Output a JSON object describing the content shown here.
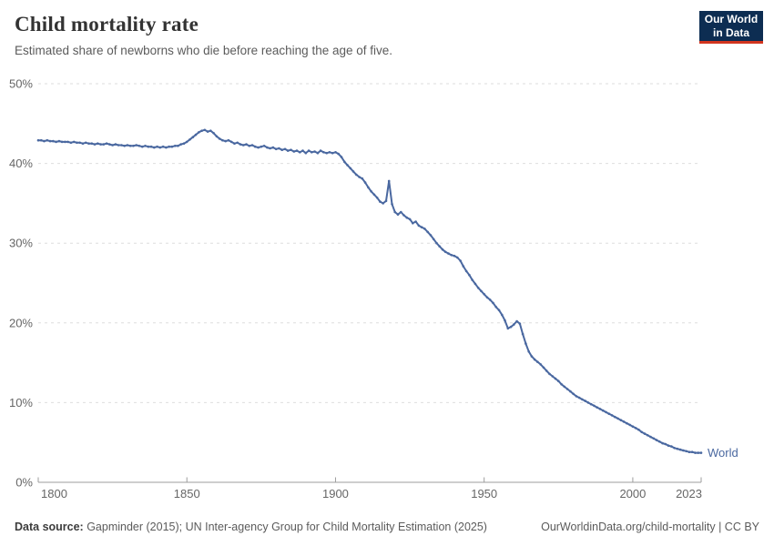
{
  "header": {
    "title": "Child mortality rate",
    "subtitle": "Estimated share of newborns who die before reaching the age of five."
  },
  "logo": {
    "line1": "Our World",
    "line2": "in Data"
  },
  "colors": {
    "line": "#4a68a0",
    "grid": "#dedede",
    "axis": "#9d9d9d",
    "tick_text": "#666666",
    "logo_bg": "#0d2d52",
    "logo_accent": "#d2351f"
  },
  "chart_data": {
    "type": "line",
    "title": "Child mortality rate",
    "subtitle": "Estimated share of newborns who die before reaching the age of five.",
    "xlabel": "",
    "ylabel": "",
    "x_range": [
      1800,
      2023
    ],
    "y_range": [
      0,
      50
    ],
    "x_ticks": [
      1800,
      1850,
      1900,
      1950,
      2000,
      2023
    ],
    "y_ticks": [
      0,
      10,
      20,
      30,
      40,
      50
    ],
    "y_tick_suffix": "%",
    "grid": "horizontal-dashed",
    "legend_position": "end-of-line-label",
    "series": [
      {
        "name": "World",
        "color": "#4a68a0",
        "points": [
          [
            1800,
            42.9
          ],
          [
            1801,
            42.9
          ],
          [
            1802,
            42.8
          ],
          [
            1803,
            42.9
          ],
          [
            1804,
            42.8
          ],
          [
            1805,
            42.8
          ],
          [
            1806,
            42.7
          ],
          [
            1807,
            42.8
          ],
          [
            1808,
            42.7
          ],
          [
            1809,
            42.7
          ],
          [
            1810,
            42.7
          ],
          [
            1811,
            42.6
          ],
          [
            1812,
            42.7
          ],
          [
            1813,
            42.6
          ],
          [
            1814,
            42.6
          ],
          [
            1815,
            42.5
          ],
          [
            1816,
            42.6
          ],
          [
            1817,
            42.5
          ],
          [
            1818,
            42.5
          ],
          [
            1819,
            42.4
          ],
          [
            1820,
            42.5
          ],
          [
            1821,
            42.4
          ],
          [
            1822,
            42.4
          ],
          [
            1823,
            42.5
          ],
          [
            1824,
            42.4
          ],
          [
            1825,
            42.3
          ],
          [
            1826,
            42.4
          ],
          [
            1827,
            42.3
          ],
          [
            1828,
            42.3
          ],
          [
            1829,
            42.2
          ],
          [
            1830,
            42.3
          ],
          [
            1831,
            42.2
          ],
          [
            1832,
            42.2
          ],
          [
            1833,
            42.3
          ],
          [
            1834,
            42.2
          ],
          [
            1835,
            42.1
          ],
          [
            1836,
            42.2
          ],
          [
            1837,
            42.1
          ],
          [
            1838,
            42.1
          ],
          [
            1839,
            42.0
          ],
          [
            1840,
            42.1
          ],
          [
            1841,
            42.0
          ],
          [
            1842,
            42.1
          ],
          [
            1843,
            42.0
          ],
          [
            1844,
            42.1
          ],
          [
            1845,
            42.1
          ],
          [
            1846,
            42.2
          ],
          [
            1847,
            42.2
          ],
          [
            1848,
            42.4
          ],
          [
            1849,
            42.5
          ],
          [
            1850,
            42.7
          ],
          [
            1851,
            43.0
          ],
          [
            1852,
            43.3
          ],
          [
            1853,
            43.6
          ],
          [
            1854,
            43.9
          ],
          [
            1855,
            44.1
          ],
          [
            1856,
            44.2
          ],
          [
            1857,
            44.0
          ],
          [
            1858,
            44.1
          ],
          [
            1859,
            43.8
          ],
          [
            1860,
            43.4
          ],
          [
            1861,
            43.1
          ],
          [
            1862,
            42.9
          ],
          [
            1863,
            42.8
          ],
          [
            1864,
            42.9
          ],
          [
            1865,
            42.7
          ],
          [
            1866,
            42.5
          ],
          [
            1867,
            42.6
          ],
          [
            1868,
            42.4
          ],
          [
            1869,
            42.3
          ],
          [
            1870,
            42.4
          ],
          [
            1871,
            42.2
          ],
          [
            1872,
            42.3
          ],
          [
            1873,
            42.1
          ],
          [
            1874,
            42.0
          ],
          [
            1875,
            42.1
          ],
          [
            1876,
            42.2
          ],
          [
            1877,
            42.0
          ],
          [
            1878,
            41.9
          ],
          [
            1879,
            42.0
          ],
          [
            1880,
            41.8
          ],
          [
            1881,
            41.9
          ],
          [
            1882,
            41.7
          ],
          [
            1883,
            41.8
          ],
          [
            1884,
            41.6
          ],
          [
            1885,
            41.7
          ],
          [
            1886,
            41.5
          ],
          [
            1887,
            41.6
          ],
          [
            1888,
            41.4
          ],
          [
            1889,
            41.6
          ],
          [
            1890,
            41.3
          ],
          [
            1891,
            41.6
          ],
          [
            1892,
            41.4
          ],
          [
            1893,
            41.5
          ],
          [
            1894,
            41.3
          ],
          [
            1895,
            41.6
          ],
          [
            1896,
            41.4
          ],
          [
            1897,
            41.3
          ],
          [
            1898,
            41.4
          ],
          [
            1899,
            41.3
          ],
          [
            1900,
            41.4
          ],
          [
            1901,
            41.2
          ],
          [
            1902,
            40.8
          ],
          [
            1903,
            40.2
          ],
          [
            1904,
            39.8
          ],
          [
            1905,
            39.4
          ],
          [
            1906,
            39.0
          ],
          [
            1907,
            38.6
          ],
          [
            1908,
            38.3
          ],
          [
            1909,
            38.1
          ],
          [
            1910,
            37.6
          ],
          [
            1911,
            37.0
          ],
          [
            1912,
            36.5
          ],
          [
            1913,
            36.1
          ],
          [
            1914,
            35.7
          ],
          [
            1915,
            35.2
          ],
          [
            1916,
            35.0
          ],
          [
            1917,
            35.3
          ],
          [
            1918,
            37.8
          ],
          [
            1919,
            34.9
          ],
          [
            1920,
            33.9
          ],
          [
            1921,
            33.6
          ],
          [
            1922,
            33.9
          ],
          [
            1923,
            33.5
          ],
          [
            1924,
            33.2
          ],
          [
            1925,
            33.0
          ],
          [
            1926,
            32.5
          ],
          [
            1927,
            32.7
          ],
          [
            1928,
            32.2
          ],
          [
            1929,
            32.0
          ],
          [
            1930,
            31.8
          ],
          [
            1931,
            31.4
          ],
          [
            1932,
            31.0
          ],
          [
            1933,
            30.5
          ],
          [
            1934,
            30.0
          ],
          [
            1935,
            29.6
          ],
          [
            1936,
            29.2
          ],
          [
            1937,
            28.9
          ],
          [
            1938,
            28.7
          ],
          [
            1939,
            28.5
          ],
          [
            1940,
            28.4
          ],
          [
            1941,
            28.2
          ],
          [
            1942,
            27.8
          ],
          [
            1943,
            27.1
          ],
          [
            1944,
            26.5
          ],
          [
            1945,
            26.0
          ],
          [
            1946,
            25.4
          ],
          [
            1947,
            24.9
          ],
          [
            1948,
            24.4
          ],
          [
            1949,
            24.0
          ],
          [
            1950,
            23.6
          ],
          [
            1951,
            23.2
          ],
          [
            1952,
            22.9
          ],
          [
            1953,
            22.5
          ],
          [
            1954,
            22.0
          ],
          [
            1955,
            21.6
          ],
          [
            1956,
            21.0
          ],
          [
            1957,
            20.3
          ],
          [
            1958,
            19.3
          ],
          [
            1959,
            19.5
          ],
          [
            1960,
            19.8
          ],
          [
            1961,
            20.2
          ],
          [
            1962,
            19.9
          ],
          [
            1963,
            18.6
          ],
          [
            1964,
            17.4
          ],
          [
            1965,
            16.4
          ],
          [
            1966,
            15.8
          ],
          [
            1967,
            15.4
          ],
          [
            1968,
            15.1
          ],
          [
            1969,
            14.8
          ],
          [
            1970,
            14.4
          ],
          [
            1971,
            14.0
          ],
          [
            1972,
            13.6
          ],
          [
            1973,
            13.3
          ],
          [
            1974,
            13.0
          ],
          [
            1975,
            12.7
          ],
          [
            1976,
            12.3
          ],
          [
            1977,
            12.0
          ],
          [
            1978,
            11.7
          ],
          [
            1979,
            11.4
          ],
          [
            1980,
            11.1
          ],
          [
            1981,
            10.8
          ],
          [
            1982,
            10.6
          ],
          [
            1983,
            10.4
          ],
          [
            1984,
            10.2
          ],
          [
            1985,
            10.0
          ],
          [
            1986,
            9.8
          ],
          [
            1987,
            9.6
          ],
          [
            1988,
            9.4
          ],
          [
            1989,
            9.2
          ],
          [
            1990,
            9.0
          ],
          [
            1991,
            8.8
          ],
          [
            1992,
            8.6
          ],
          [
            1993,
            8.4
          ],
          [
            1994,
            8.2
          ],
          [
            1995,
            8.0
          ],
          [
            1996,
            7.8
          ],
          [
            1997,
            7.6
          ],
          [
            1998,
            7.4
          ],
          [
            1999,
            7.2
          ],
          [
            2000,
            7.0
          ],
          [
            2001,
            6.8
          ],
          [
            2002,
            6.6
          ],
          [
            2003,
            6.3
          ],
          [
            2004,
            6.1
          ],
          [
            2005,
            5.9
          ],
          [
            2006,
            5.7
          ],
          [
            2007,
            5.5
          ],
          [
            2008,
            5.3
          ],
          [
            2009,
            5.1
          ],
          [
            2010,
            4.9
          ],
          [
            2011,
            4.8
          ],
          [
            2012,
            4.6
          ],
          [
            2013,
            4.5
          ],
          [
            2014,
            4.3
          ],
          [
            2015,
            4.2
          ],
          [
            2016,
            4.1
          ],
          [
            2017,
            4.0
          ],
          [
            2018,
            3.9
          ],
          [
            2019,
            3.8
          ],
          [
            2020,
            3.8
          ],
          [
            2021,
            3.7
          ],
          [
            2022,
            3.7
          ],
          [
            2023,
            3.7
          ]
        ]
      }
    ]
  },
  "footer": {
    "source_label": "Data source:",
    "source_text": " Gapminder (2015); UN Inter-agency Group for Child Mortality Estimation (2025)",
    "link_text": "OurWorldinData.org/child-mortality",
    "license_separator": " | ",
    "license_text": "CC BY"
  }
}
